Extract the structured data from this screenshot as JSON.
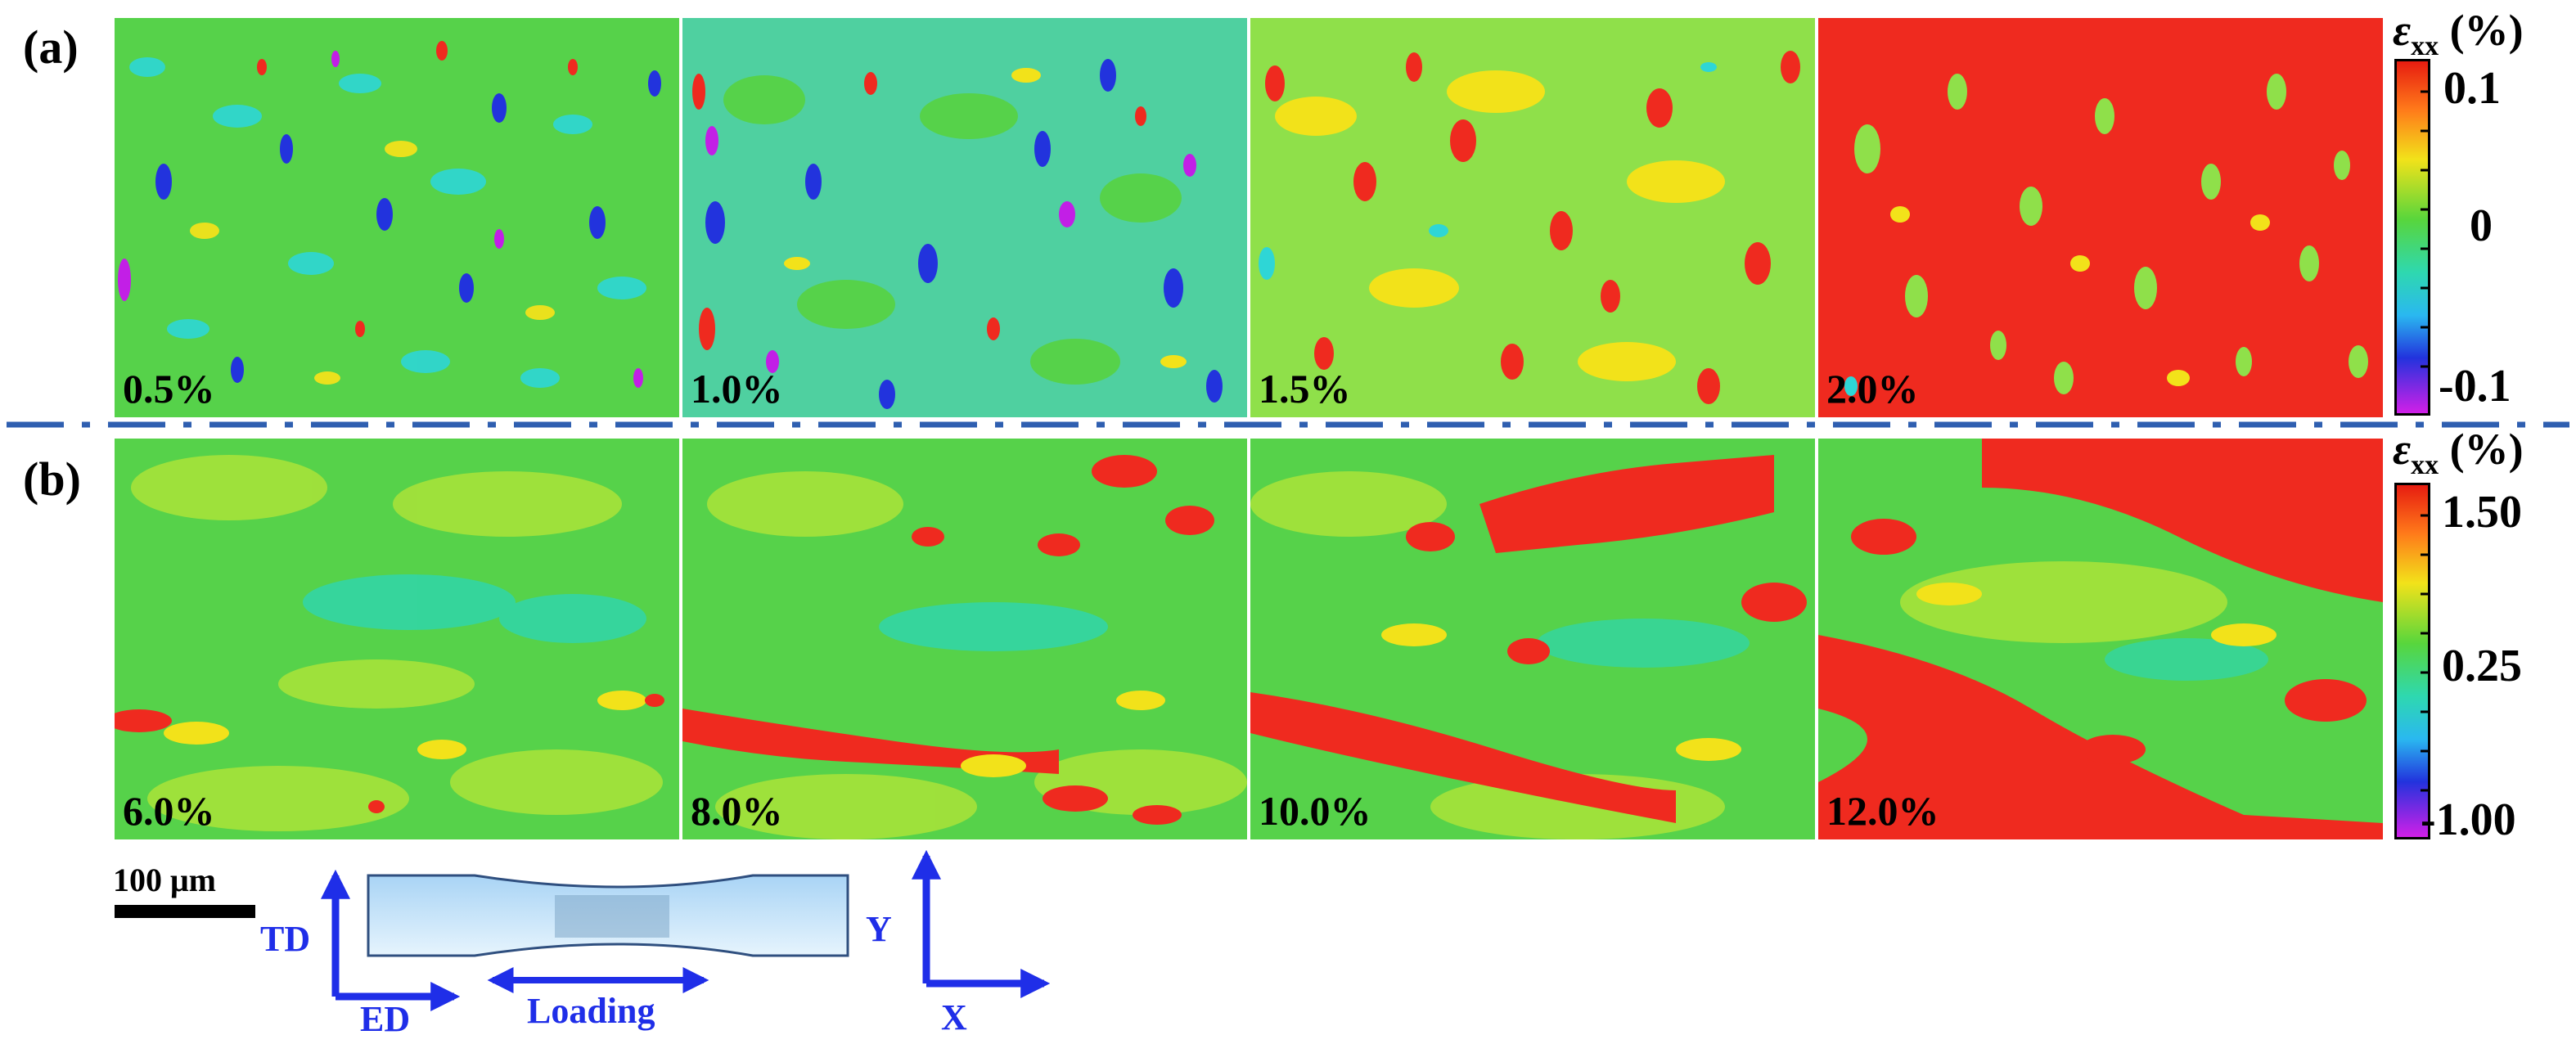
{
  "panels": {
    "a": {
      "label": "(a)",
      "strain_labels": [
        "0.5%",
        "1.0%",
        "1.5%",
        "2.0%"
      ],
      "colorbar": {
        "symbol": "ε",
        "subscript": "xx",
        "unit": "(%)",
        "ticks": [
          "0.1",
          "0",
          "-0.1"
        ]
      }
    },
    "b": {
      "label": "(b)",
      "strain_labels": [
        "6.0%",
        "8.0%",
        "10.0%",
        "12.0%"
      ],
      "colorbar": {
        "symbol": "ε",
        "subscript": "xx",
        "unit": "(%)",
        "ticks": [
          "1.50",
          "0.25",
          "-1.00"
        ]
      }
    }
  },
  "scale_bar": {
    "label": "100 μm"
  },
  "specimen_axes": {
    "vertical": "TD",
    "horizontal": "ED",
    "loading": "Loading"
  },
  "image_axes": {
    "vertical": "Y",
    "horizontal": "X"
  },
  "colors": {
    "axis_blue": "#1f2ee8",
    "divider_blue": "#2f5fb0",
    "map_red": "#ef2a1f",
    "map_green": "#5fd64a",
    "map_cyan": "#2ed6e6",
    "map_blue": "#2233dd",
    "map_purple": "#c21fe6"
  }
}
